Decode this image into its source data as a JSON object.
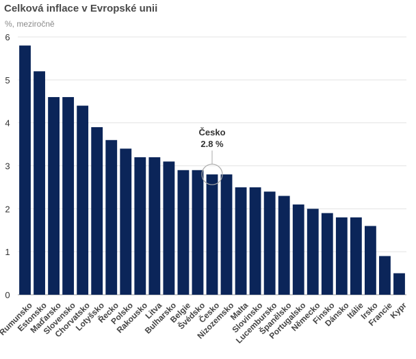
{
  "chart_data": {
    "type": "bar",
    "title": "Celková inflace v Evropské unii",
    "subtitle": "%, meziročně",
    "xlabel": "",
    "ylabel": "",
    "ylim": [
      0,
      6
    ],
    "yticks": [
      0,
      1,
      2,
      3,
      4,
      5,
      6
    ],
    "grid": true,
    "bar_color": "#0b2559",
    "categories": [
      "Rumunsko",
      "Estonsko",
      "Maďarsko",
      "Slovensko",
      "Chorvatsko",
      "Lotyšsko",
      "Řecko",
      "Polsko",
      "Rakousko",
      "Litva",
      "Bulharsko",
      "Belgie",
      "Švédsko",
      "Česko",
      "Nizozemsko",
      "Malta",
      "Slovinsko",
      "Lucembursko",
      "Španělsko",
      "Portugalsko",
      "Německo",
      "Finsko",
      "Dánsko",
      "Itálie",
      "Irsko",
      "Francie",
      "Kypr"
    ],
    "values": [
      5.8,
      5.2,
      4.6,
      4.6,
      4.4,
      3.9,
      3.6,
      3.4,
      3.2,
      3.2,
      3.1,
      2.9,
      2.9,
      2.8,
      2.8,
      2.5,
      2.5,
      2.4,
      2.3,
      2.1,
      2.0,
      1.9,
      1.8,
      1.8,
      1.6,
      0.9,
      0.5
    ],
    "annotation": {
      "category": "Česko",
      "label": "Česko",
      "value_label": "2.8 %"
    }
  }
}
